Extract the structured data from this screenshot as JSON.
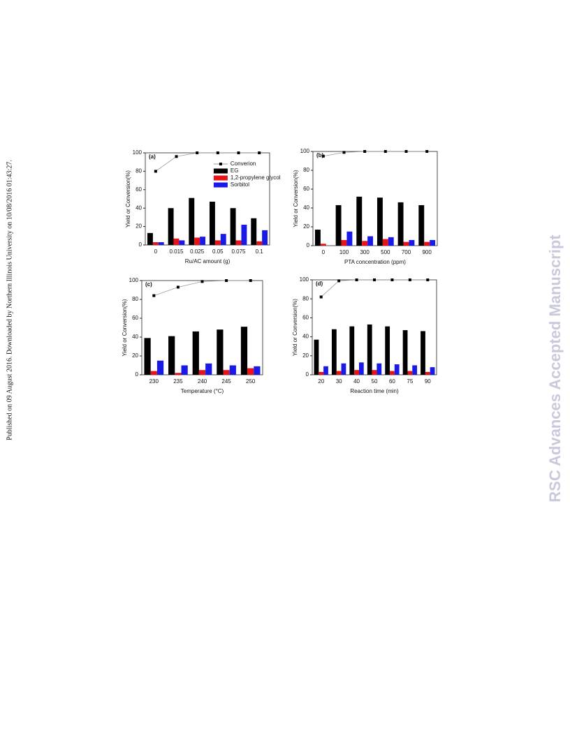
{
  "side_note": "Published on 09 August 2016. Downloaded by Northern Illinois University on 10/08/2016 01:43:27.",
  "watermark": "RSC Advances Accepted Manuscript",
  "chart_data": [
    {
      "type": "bar",
      "panel_label": "(a)",
      "x_label": "Ru/AC amount (g)",
      "y_label": "Yield or Conversion(%)",
      "categories": [
        "0",
        "0.015",
        "0.025",
        "0.05",
        "0.075",
        "0.1"
      ],
      "ylim": [
        0,
        100
      ],
      "yticks": [
        0,
        20,
        40,
        60,
        80,
        100
      ],
      "legend": "upper right",
      "series": [
        {
          "name": "Converion",
          "type": "line",
          "color": "#000000",
          "values": [
            80,
            96,
            100,
            100,
            100,
            100
          ]
        },
        {
          "name": "EG",
          "color": "#000000",
          "values": [
            13,
            40,
            51,
            47,
            40,
            29
          ]
        },
        {
          "name": "1,2-propylene glycol",
          "color": "#e8141a",
          "values": [
            3,
            7,
            8,
            5,
            5,
            4
          ]
        },
        {
          "name": "Sorbitol",
          "color": "#1a1ae8",
          "values": [
            3,
            5,
            9,
            12,
            22,
            16
          ]
        }
      ]
    },
    {
      "type": "bar",
      "panel_label": "(b)",
      "x_label": "PTA concentration (ppm)",
      "y_label": "Yield or Conversion(%)",
      "categories": [
        "0",
        "100",
        "300",
        "500",
        "700",
        "900"
      ],
      "ylim": [
        0,
        100
      ],
      "yticks": [
        0,
        20,
        40,
        60,
        80,
        100
      ],
      "series": [
        {
          "type": "line",
          "color": "#000000",
          "values": [
            95,
            99,
            100,
            100,
            100,
            100
          ]
        },
        {
          "color": "#000000",
          "values": [
            17,
            43,
            52,
            51,
            46,
            43
          ]
        },
        {
          "color": "#e8141a",
          "values": [
            2,
            6,
            5,
            7,
            4,
            4
          ]
        },
        {
          "color": "#1a1ae8",
          "values": [
            0,
            15,
            10,
            9,
            6,
            6
          ]
        }
      ]
    },
    {
      "type": "bar",
      "panel_label": "(c)",
      "x_label": "Temperature (°C)",
      "y_label": "Yield or Conversion(%)",
      "categories": [
        "230",
        "235",
        "240",
        "245",
        "250"
      ],
      "ylim": [
        0,
        100
      ],
      "yticks": [
        0,
        20,
        40,
        60,
        80,
        100
      ],
      "series": [
        {
          "type": "line",
          "color": "#000000",
          "values": [
            84,
            93,
            99,
            100,
            100
          ]
        },
        {
          "color": "#000000",
          "values": [
            39,
            41,
            46,
            48,
            51
          ]
        },
        {
          "color": "#e8141a",
          "values": [
            4,
            2,
            5,
            5,
            7
          ]
        },
        {
          "color": "#1a1ae8",
          "values": [
            15,
            10,
            12,
            10,
            9
          ]
        }
      ]
    },
    {
      "type": "bar",
      "panel_label": "(d)",
      "x_label": "Reaction time (min)",
      "y_label": "Yield or Conversion(%)",
      "categories": [
        "20",
        "30",
        "40",
        "50",
        "60",
        "75",
        "90"
      ],
      "ylim": [
        0,
        100
      ],
      "yticks": [
        0,
        20,
        40,
        60,
        80,
        100
      ],
      "series": [
        {
          "type": "line",
          "color": "#000000",
          "values": [
            82,
            99,
            100,
            100,
            100,
            100,
            100
          ]
        },
        {
          "color": "#000000",
          "values": [
            37,
            48,
            51,
            53,
            51,
            47,
            46
          ]
        },
        {
          "color": "#e8141a",
          "values": [
            3,
            4,
            5,
            5,
            4,
            4,
            3
          ]
        },
        {
          "color": "#1a1ae8",
          "values": [
            9,
            12,
            13,
            12,
            11,
            10,
            8
          ]
        }
      ]
    }
  ]
}
